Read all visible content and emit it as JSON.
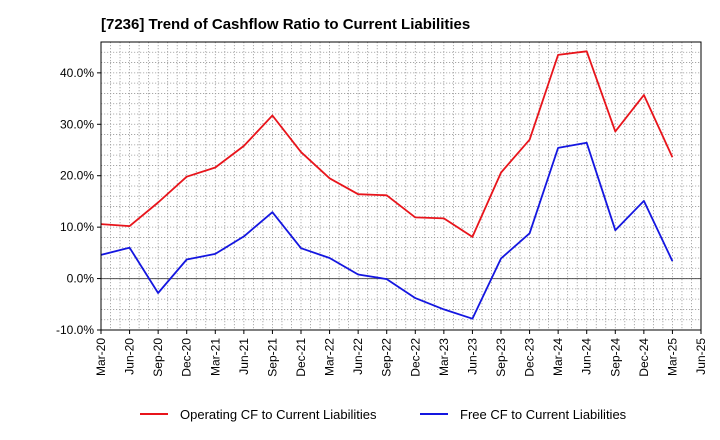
{
  "chart_data": {
    "type": "line",
    "title": "[7236]  Trend of Cashflow Ratio to Current Liabilities",
    "xlabel": "",
    "ylabel": "",
    "x": [
      "Mar-20",
      "Jun-20",
      "Sep-20",
      "Dec-20",
      "Mar-21",
      "Jun-21",
      "Sep-21",
      "Dec-21",
      "Mar-22",
      "Jun-22",
      "Sep-22",
      "Dec-22",
      "Mar-23",
      "Jun-23",
      "Sep-23",
      "Dec-23",
      "Mar-24",
      "Jun-24",
      "Sep-24",
      "Dec-24",
      "Mar-25",
      "Jun-25"
    ],
    "ylim": [
      -10,
      46
    ],
    "yticks": [
      -10,
      0,
      10,
      20,
      30,
      40
    ],
    "ytick_labels": [
      "-10.0%",
      "0.0%",
      "10.0%",
      "20.0%",
      "30.0%",
      "40.0%"
    ],
    "grid": true,
    "legend_position": "bottom",
    "series": [
      {
        "name": "Operating CF to Current Liabilities",
        "color": "#e8141b",
        "values": [
          10.6,
          10.2,
          14.8,
          19.8,
          21.6,
          25.8,
          31.7,
          24.6,
          19.5,
          16.4,
          16.2,
          11.9,
          11.7,
          8.1,
          20.6,
          27.0,
          43.5,
          44.2,
          28.6,
          35.7,
          23.6,
          null
        ]
      },
      {
        "name": "Free CF to Current Liabilities",
        "color": "#1416e0",
        "values": [
          4.6,
          6.0,
          -2.8,
          3.7,
          4.8,
          8.2,
          12.9,
          5.9,
          4.0,
          0.8,
          -0.1,
          -3.8,
          -6.0,
          -7.8,
          3.9,
          8.8,
          25.4,
          26.4,
          9.4,
          15.1,
          3.4,
          null
        ]
      }
    ]
  }
}
